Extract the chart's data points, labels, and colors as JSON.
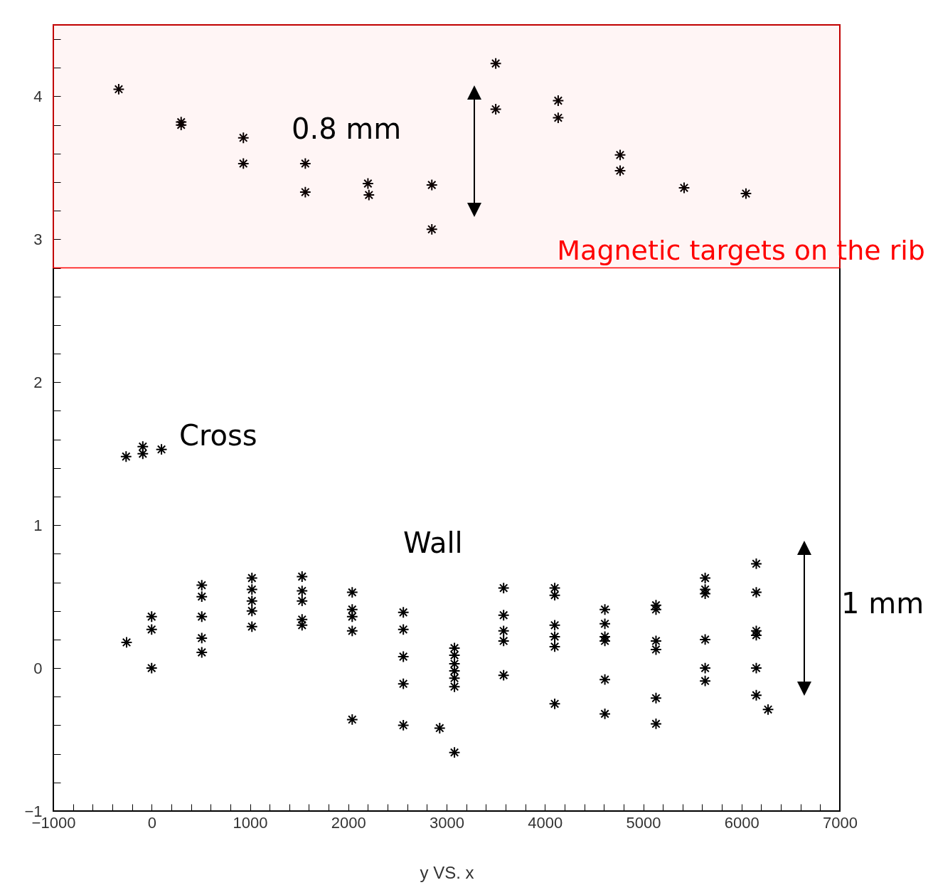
{
  "chart_data": {
    "type": "scatter",
    "xlabel": "y VS. x",
    "xlim": [
      -1000,
      7000
    ],
    "ylim": [
      -1,
      4.5
    ],
    "xticks": [
      {
        "value": -1000,
        "label": "−1000"
      },
      {
        "value": -800,
        "label": null
      },
      {
        "value": -600,
        "label": null
      },
      {
        "value": -400,
        "label": null
      },
      {
        "value": -200,
        "label": null
      },
      0,
      {
        "value": 200,
        "label": null
      },
      {
        "value": 400,
        "label": null
      },
      {
        "value": 600,
        "label": null
      },
      {
        "value": 800,
        "label": null
      },
      1000,
      {
        "value": 1200,
        "label": null
      },
      {
        "value": 1400,
        "label": null
      },
      {
        "value": 1600,
        "label": null
      },
      {
        "value": 1800,
        "label": null
      },
      2000,
      {
        "value": 2200,
        "label": null
      },
      {
        "value": 2400,
        "label": null
      },
      {
        "value": 2600,
        "label": null
      },
      {
        "value": 2800,
        "label": null
      },
      3000,
      {
        "value": 3200,
        "label": null
      },
      {
        "value": 3400,
        "label": null
      },
      {
        "value": 3600,
        "label": null
      },
      {
        "value": 3800,
        "label": null
      },
      4000,
      {
        "value": 4200,
        "label": null
      },
      {
        "value": 4400,
        "label": null
      },
      {
        "value": 4600,
        "label": null
      },
      {
        "value": 4800,
        "label": null
      },
      5000,
      {
        "value": 5200,
        "label": null
      },
      {
        "value": 5400,
        "label": null
      },
      {
        "value": 5600,
        "label": null
      },
      {
        "value": 5800,
        "label": null
      },
      6000,
      {
        "value": 6200,
        "label": null
      },
      {
        "value": 6400,
        "label": null
      },
      {
        "value": 6600,
        "label": null
      },
      {
        "value": 6800,
        "label": null
      },
      7000
    ],
    "yticks": [
      {
        "value": -1,
        "label": "−1"
      },
      {
        "value": -0.8,
        "label": null
      },
      {
        "value": -0.6,
        "label": null
      },
      {
        "value": -0.4,
        "label": null
      },
      {
        "value": -0.2,
        "label": null
      },
      0,
      {
        "value": 0.2,
        "label": null
      },
      {
        "value": 0.4,
        "label": null
      },
      {
        "value": 0.6,
        "label": null
      },
      {
        "value": 0.8,
        "label": null
      },
      1,
      {
        "value": 1.2,
        "label": null
      },
      {
        "value": 1.4,
        "label": null
      },
      {
        "value": 1.6,
        "label": null
      },
      {
        "value": 1.8,
        "label": null
      },
      2,
      {
        "value": 2.2,
        "label": null
      },
      {
        "value": 2.4,
        "label": null
      },
      {
        "value": 2.6,
        "label": null
      },
      {
        "value": 2.8,
        "label": null
      },
      3,
      {
        "value": 3.2,
        "label": null
      },
      {
        "value": 3.4,
        "label": null
      },
      {
        "value": 3.6,
        "label": null
      },
      {
        "value": 3.8,
        "label": null
      },
      4,
      {
        "value": 4.2,
        "label": null
      },
      {
        "value": 4.4,
        "label": null
      }
    ],
    "marker": "cross",
    "series": [
      {
        "color": "#000000",
        "x": [
          -335,
          300,
          300,
          933,
          933,
          1563,
          1563,
          2200,
          2210,
          2850,
          2850,
          3500,
          3500,
          4135,
          4135,
          4765,
          4765,
          5416,
          6045,
          -260,
          -90,
          -90,
          100,
          -255,
          0,
          0,
          0,
          510,
          510,
          510,
          510,
          510,
          1020,
          1020,
          1020,
          1020,
          1020,
          1530,
          1530,
          1530,
          1530,
          1530,
          2040,
          2040,
          2040,
          2040,
          2040,
          2560,
          2560,
          2560,
          2560,
          2560,
          2930,
          3080,
          3080,
          3080,
          3080,
          3080,
          3080,
          3080,
          3580,
          3580,
          3580,
          3580,
          3580,
          4100,
          4100,
          4100,
          4100,
          4100,
          4100,
          4610,
          4610,
          4610,
          4610,
          4610,
          4610,
          5130,
          5130,
          5130,
          5130,
          5130,
          5130,
          5630,
          5630,
          5630,
          5630,
          5630,
          5630,
          6150,
          6150,
          6150,
          6150,
          6150,
          6150,
          6270
        ],
        "values": [
          4.05,
          3.82,
          3.8,
          3.71,
          3.53,
          3.53,
          3.33,
          3.39,
          3.31,
          3.38,
          3.07,
          4.23,
          3.91,
          3.97,
          3.85,
          3.59,
          3.48,
          3.36,
          3.32,
          1.48,
          1.55,
          1.5,
          1.53,
          0.18,
          0.36,
          0.27,
          0.0,
          0.58,
          0.5,
          0.36,
          0.21,
          0.11,
          0.63,
          0.55,
          0.47,
          0.4,
          0.29,
          0.64,
          0.54,
          0.47,
          0.34,
          0.3,
          0.53,
          0.41,
          0.36,
          0.26,
          -0.36,
          0.39,
          0.27,
          0.08,
          -0.11,
          -0.4,
          -0.42,
          0.14,
          0.09,
          0.03,
          -0.02,
          -0.07,
          -0.13,
          -0.59,
          0.56,
          0.37,
          0.26,
          0.19,
          -0.05,
          0.56,
          0.51,
          0.3,
          0.22,
          0.15,
          -0.25,
          0.41,
          0.31,
          0.22,
          0.19,
          -0.08,
          -0.32,
          0.44,
          0.41,
          0.19,
          0.13,
          -0.21,
          -0.39,
          0.63,
          0.55,
          0.52,
          0.2,
          0.0,
          -0.09,
          0.73,
          0.53,
          0.26,
          0.23,
          0.0,
          -0.19,
          -0.29
        ]
      }
    ],
    "bands": [
      {
        "axis": "y",
        "from": 2.8,
        "to": 4.5,
        "label": "Magnetic targets on the rib",
        "color": "#ff0000"
      }
    ],
    "annotations": [
      "0.8 mm",
      "Cross",
      "Wall",
      "1 mm"
    ]
  }
}
